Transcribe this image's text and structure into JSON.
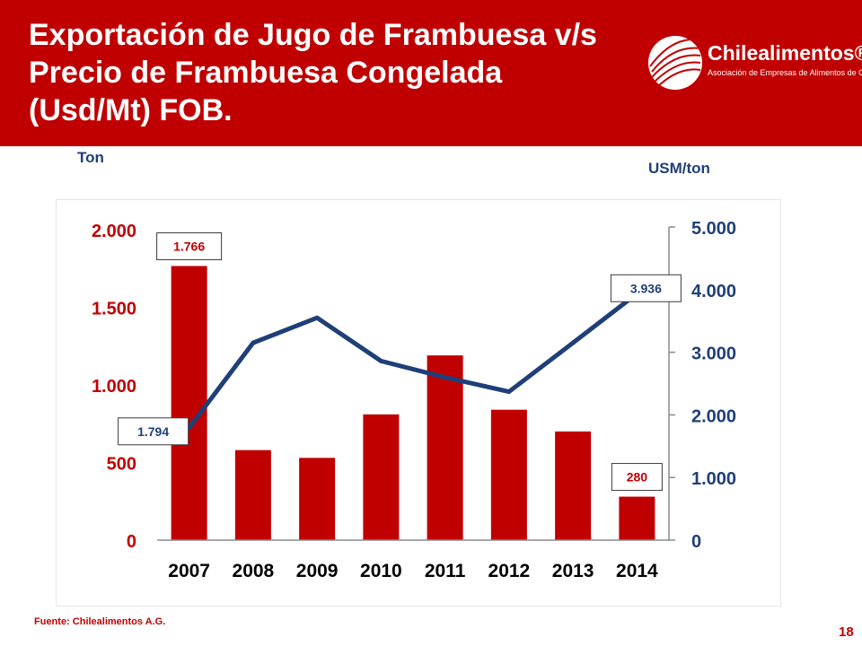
{
  "title": "Exportación de Jugo de Frambuesa v/s Precio de Frambuesa Congelada (Usd/Mt) FOB.",
  "logo": {
    "name": "Chilealimentos®",
    "tagline": "Asociación de Empresas de Alimentos de Chile"
  },
  "source": "Fuente: Chilealimentos A.G.",
  "page_number": "18",
  "colors": {
    "banner": "#c00000",
    "bars": "#c00000",
    "line": "#1f3f78",
    "left_axis_text": "#c00000",
    "right_axis_text": "#1f3f78"
  },
  "chart_data": {
    "type": "bar",
    "categories": [
      "2007",
      "2008",
      "2009",
      "2010",
      "2011",
      "2012",
      "2013",
      "2014"
    ],
    "series": [
      {
        "type": "bar",
        "axis": "left",
        "values": [
          1766,
          580,
          530,
          810,
          1190,
          840,
          700,
          280
        ]
      },
      {
        "type": "line",
        "axis": "right",
        "values": [
          1794,
          3150,
          3550,
          2860,
          2600,
          2370,
          3150,
          3936
        ]
      }
    ],
    "y_left": {
      "label": "Ton",
      "ylim": [
        0,
        2000
      ],
      "ticks": [
        0,
        500,
        1000,
        1500,
        2000
      ],
      "tick_labels": [
        "0",
        "500",
        "1.000",
        "1.500",
        "2.000"
      ]
    },
    "y_right": {
      "label": "USM/ton",
      "ylim": [
        0,
        5000
      ],
      "ticks": [
        0,
        1000,
        2000,
        3000,
        4000,
        5000
      ],
      "tick_labels": [
        "0",
        "1.000",
        "2.000",
        "3.000",
        "4.000",
        "5.000"
      ]
    },
    "annotations": [
      {
        "series": 0,
        "index": 0,
        "text": "1.766"
      },
      {
        "series": 0,
        "index": 7,
        "text": "280"
      },
      {
        "series": 1,
        "index": 0,
        "text": "1.794"
      },
      {
        "series": 1,
        "index": 7,
        "text": "3.936"
      }
    ],
    "grid": false,
    "legend": "none"
  }
}
